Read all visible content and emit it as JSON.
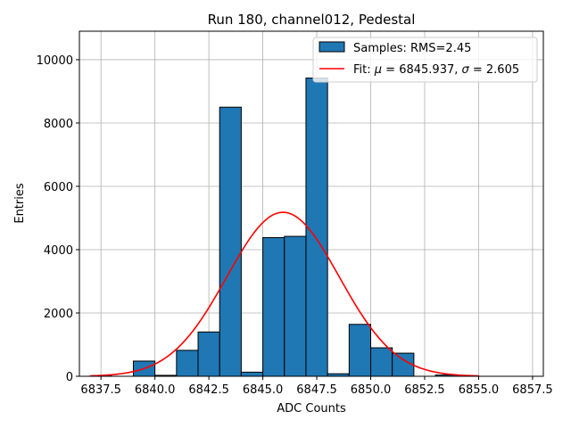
{
  "chart_data": {
    "type": "bar",
    "title": "Run 180, channel012, Pedestal",
    "xlabel": "ADC Counts",
    "ylabel": "Entries",
    "xlim": [
      6836.5,
      6858.0
    ],
    "ylim": [
      0,
      10900
    ],
    "grid": true,
    "x_ticks": [
      6837.5,
      6840.0,
      6842.5,
      6845.0,
      6847.5,
      6850.0,
      6852.5,
      6855.0,
      6857.5
    ],
    "x_tick_labels": [
      "6837.5",
      "6840.0",
      "6842.5",
      "6845.0",
      "6847.5",
      "6850.0",
      "6852.5",
      "6855.0",
      "6857.5"
    ],
    "y_ticks": [
      0,
      2000,
      4000,
      6000,
      8000,
      10000
    ],
    "y_tick_labels": [
      "0",
      "2000",
      "4000",
      "6000",
      "8000",
      "10000"
    ],
    "bin_width": 1.0,
    "bin_left_edges": [
      6837,
      6838,
      6839,
      6840,
      6841,
      6842,
      6843,
      6844,
      6845,
      6846,
      6847,
      6848,
      6849,
      6850,
      6851,
      6852,
      6853,
      6854,
      6855,
      6856
    ],
    "series": [
      {
        "name": "Samples: RMS=2.45",
        "type": "histogram",
        "color": "#1f77b4",
        "values": [
          10,
          0,
          480,
          30,
          820,
          1400,
          8500,
          130,
          4380,
          4420,
          9420,
          80,
          1640,
          900,
          730,
          0,
          40,
          15,
          0,
          0
        ]
      },
      {
        "name": "Fit: μ = 6845.937, σ = 2.605",
        "legend_prefix": "Fit: ",
        "legend_mu_symbol": "μ",
        "legend_mu_value": " = 6845.937, ",
        "legend_sigma_symbol": "σ",
        "legend_sigma_value": " = 2.605",
        "type": "gaussian",
        "color": "#ff0000",
        "mu": 6845.937,
        "sigma": 2.605,
        "amplitude": 5180,
        "x_range": [
          6837.0,
          6855.0
        ]
      }
    ],
    "legend_position": "top-right"
  }
}
